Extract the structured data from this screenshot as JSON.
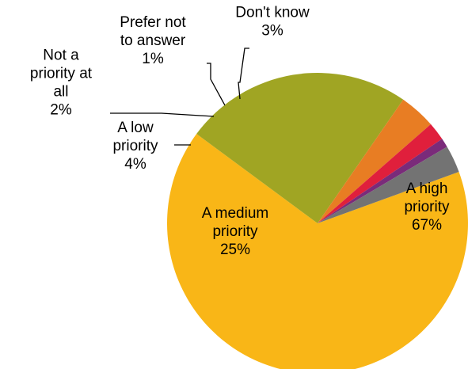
{
  "chart_data": {
    "type": "pie",
    "title": "",
    "start_angle_deg": 70,
    "direction": "clockwise",
    "slices": [
      {
        "label": "A high priority",
        "label_lines": [
          "A high",
          "priority"
        ],
        "value": 67,
        "value_text": "67%",
        "color": "#F9B617"
      },
      {
        "label": "A medium priority",
        "label_lines": [
          "A medium",
          "priority"
        ],
        "value": 25,
        "value_text": "25%",
        "color": "#A0A523"
      },
      {
        "label": "A low priority",
        "label_lines": [
          "A low",
          "priority"
        ],
        "value": 4,
        "value_text": "4%",
        "color": "#E87D23"
      },
      {
        "label": "Not a priority at all",
        "label_lines": [
          "Not a",
          "priority at",
          "all"
        ],
        "value": 2,
        "value_text": "2%",
        "color": "#E01F3C"
      },
      {
        "label": "Prefer not to answer",
        "label_lines": [
          "Prefer not",
          "to answer"
        ],
        "value": 1,
        "value_text": "1%",
        "color": "#7A2B7A"
      },
      {
        "label": "Don't know",
        "label_lines": [
          "Don't know"
        ],
        "value": 3,
        "value_text": "3%",
        "color": "#737373"
      }
    ]
  }
}
